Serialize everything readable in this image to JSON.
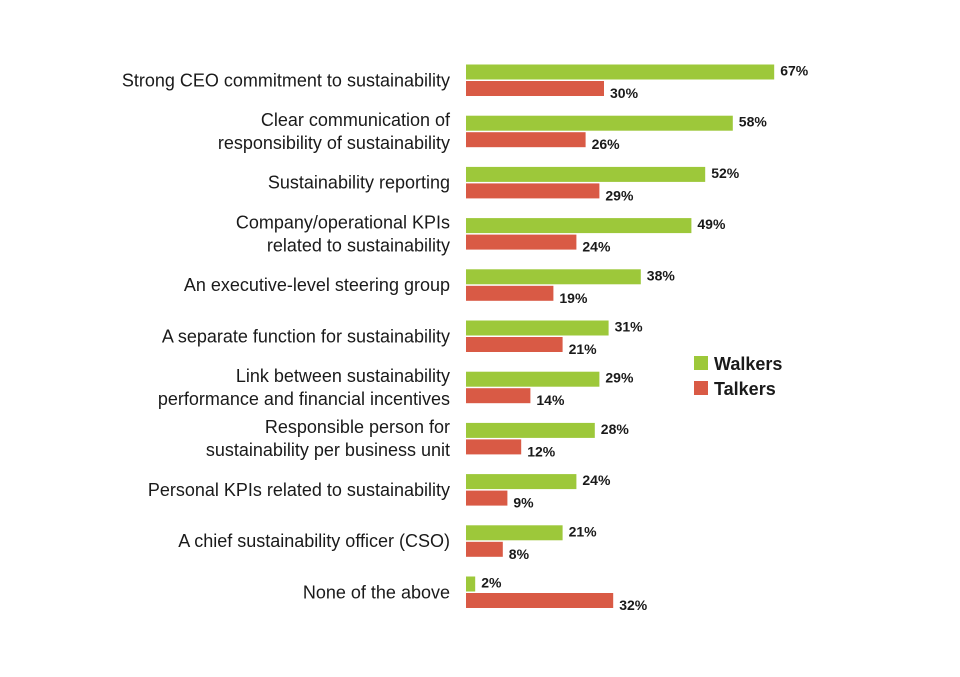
{
  "chart_data": {
    "type": "bar",
    "orientation": "horizontal",
    "title": "",
    "xlabel": "",
    "ylabel": "",
    "xlim": [
      0,
      70
    ],
    "grid": false,
    "legend_position": "right",
    "categories": [
      [
        "Strong CEO commitment to sustainability"
      ],
      [
        "Clear communication of",
        "responsibility of sustainability"
      ],
      [
        "Sustainability reporting"
      ],
      [
        "Company/operational KPIs",
        "related to sustainability"
      ],
      [
        "An executive-level steering group"
      ],
      [
        "A separate function for sustainability"
      ],
      [
        "Link between sustainability",
        "performance and financial incentives"
      ],
      [
        "Responsible person for",
        "sustainability per business unit"
      ],
      [
        "Personal KPIs related to sustainability"
      ],
      [
        "A chief sustainability officer (CSO)"
      ],
      [
        "None of the above"
      ]
    ],
    "series": [
      {
        "name": "Walkers",
        "color": "#9dc83a",
        "values": [
          67,
          58,
          52,
          49,
          38,
          31,
          29,
          28,
          24,
          21,
          2
        ],
        "labels": [
          "67%",
          "58%",
          "52%",
          "49%",
          "38%",
          "31%",
          "29%",
          "28%",
          "24%",
          "21%",
          "2%"
        ]
      },
      {
        "name": "Talkers",
        "color": "#d95a45",
        "values": [
          30,
          26,
          29,
          24,
          19,
          21,
          14,
          12,
          9,
          8,
          32
        ],
        "labels": [
          "30%",
          "26%",
          "29%",
          "24%",
          "19%",
          "21%",
          "14%",
          "12%",
          "9%",
          "8%",
          "32%"
        ]
      }
    ]
  }
}
